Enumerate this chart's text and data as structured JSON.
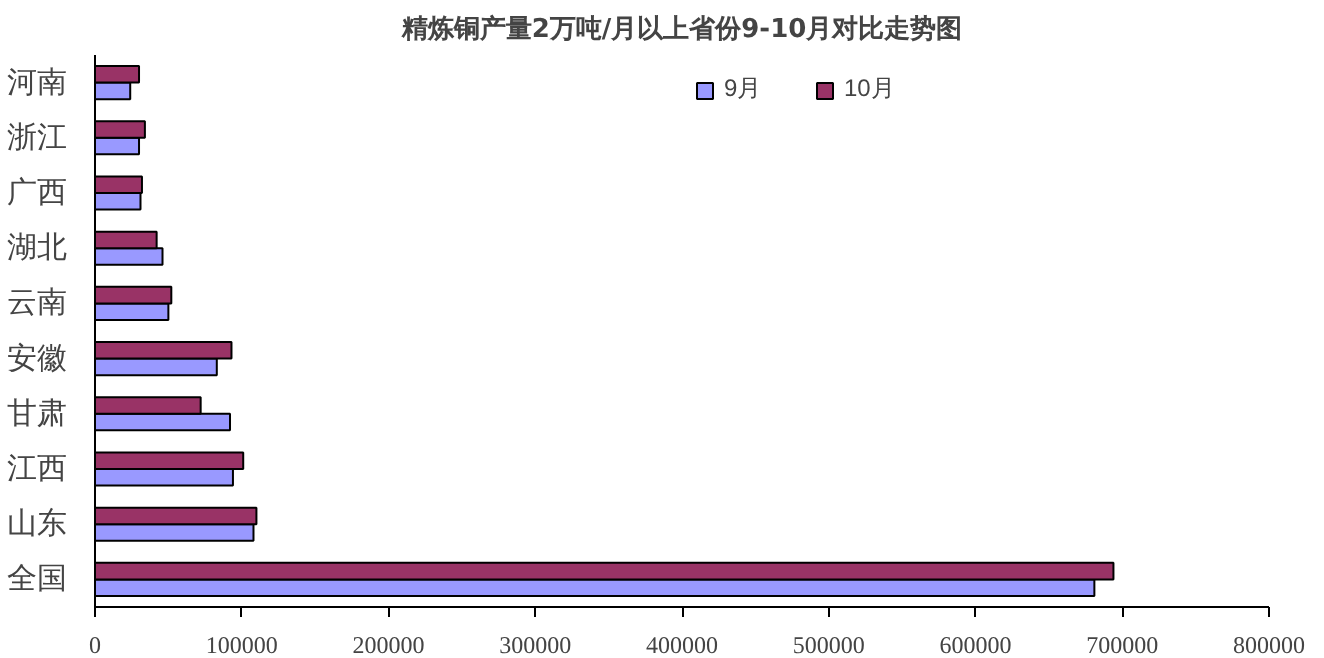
{
  "chart_data": {
    "type": "bar",
    "orientation": "horizontal",
    "title": "精炼铜产量2万吨/月以上省份9-10月对比走势图",
    "categories": [
      "河南",
      "浙江",
      "广西",
      "湖北",
      "云南",
      "安徽",
      "甘肃",
      "江西",
      "山东",
      "全国"
    ],
    "series": [
      {
        "name": "9月",
        "color": "#9999ff",
        "values": [
          24000,
          30000,
          31000,
          46000,
          50000,
          83000,
          92000,
          94000,
          108000,
          681000
        ]
      },
      {
        "name": "10月",
        "color": "#993366",
        "values": [
          30000,
          34000,
          32000,
          42000,
          52000,
          93000,
          72000,
          101000,
          110000,
          694000
        ]
      }
    ],
    "xlim": [
      0,
      800000
    ],
    "xticks": [
      0,
      100000,
      200000,
      300000,
      400000,
      500000,
      600000,
      700000,
      800000
    ],
    "grid": false,
    "legend": "top right"
  }
}
